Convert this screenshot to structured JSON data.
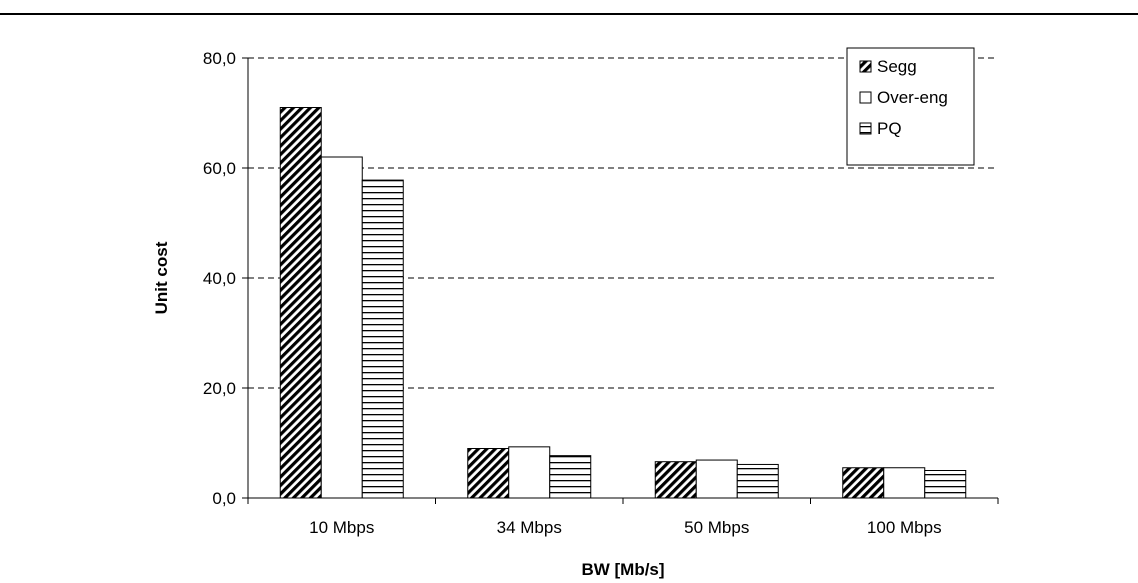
{
  "chart_data": {
    "type": "bar",
    "title": "",
    "xlabel": "BW [Mb/s]",
    "ylabel": "Unit cost",
    "categories": [
      "10 Mbps",
      "34 Mbps",
      "50 Mbps",
      "100 Mbps"
    ],
    "ylim": [
      0,
      80
    ],
    "yticks": [
      0,
      20,
      40,
      60,
      80
    ],
    "ytick_labels": [
      "0,0",
      "20,0",
      "40,0",
      "60,0",
      "80,0"
    ],
    "grid": "horizontal dashed",
    "legend_position": "top-right",
    "series": [
      {
        "name": "Segg",
        "pattern": "diagonal-hatch",
        "values": [
          71.0,
          9.0,
          6.6,
          5.5
        ]
      },
      {
        "name": "Over-eng",
        "pattern": "white",
        "values": [
          62.0,
          9.3,
          6.9,
          5.5
        ]
      },
      {
        "name": "PQ",
        "pattern": "horizontal-lines",
        "values": [
          57.8,
          7.7,
          6.1,
          5.0
        ]
      }
    ]
  }
}
